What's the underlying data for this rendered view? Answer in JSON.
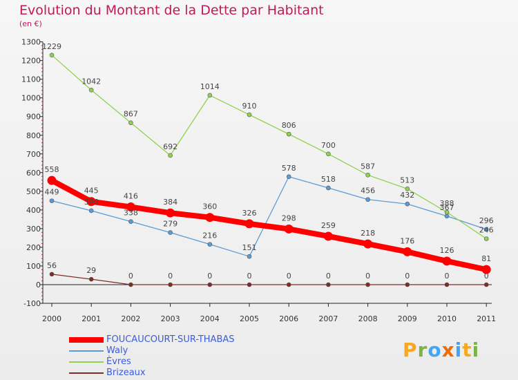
{
  "title": "Evolution du Montant de la Dette par Habitant",
  "subtitle": "(en €)",
  "logo": {
    "text": "Proxiti",
    "colors": [
      "#f7a823",
      "#7cb342",
      "#42a5f5",
      "#ef6c00",
      "#42a5f5",
      "#f7a823",
      "#7cb342"
    ]
  },
  "chart_data": {
    "type": "line",
    "title": "Evolution du Montant de la Dette par Habitant",
    "ylabel": "(en €)",
    "x": [
      "2000",
      "2001",
      "2002",
      "2003",
      "2004",
      "2005",
      "2006",
      "2007",
      "2008",
      "2009",
      "2010",
      "2011"
    ],
    "ylim": [
      -100,
      1300
    ],
    "yticks": [
      -100,
      0,
      100,
      200,
      300,
      400,
      500,
      600,
      700,
      800,
      900,
      1000,
      1100,
      1200,
      1300
    ],
    "grid": false,
    "legend_position": "bottom-left",
    "series": [
      {
        "name": "FOUCAUCOURT-SUR-THABAS",
        "color": "#ff0000",
        "values": [
          558,
          445,
          416,
          384,
          360,
          326,
          298,
          259,
          218,
          176,
          126,
          81
        ]
      },
      {
        "name": "Waly",
        "color": "#5b9bd5",
        "values": [
          449,
          396,
          338,
          279,
          216,
          151,
          578,
          518,
          456,
          432,
          367,
          296
        ]
      },
      {
        "name": "Èvres",
        "color": "#8fd14f",
        "values": [
          1229,
          1042,
          867,
          692,
          1014,
          910,
          806,
          700,
          587,
          513,
          388,
          246
        ]
      },
      {
        "name": "Brizeaux",
        "color": "#7b2d26",
        "values": [
          56,
          29,
          0,
          0,
          0,
          0,
          0,
          0,
          0,
          0,
          0,
          0
        ]
      }
    ]
  }
}
